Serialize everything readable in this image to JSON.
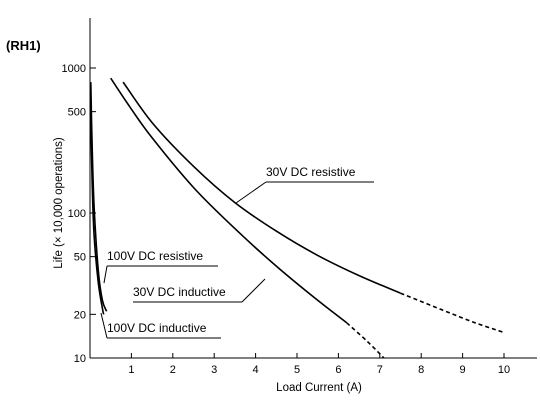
{
  "chart_data": {
    "type": "line",
    "title": "(RH1)",
    "xlabel": "Load Current (A)",
    "ylabel": "Life (× 10,000 operations)",
    "xlim": [
      0,
      10.8
    ],
    "ylim": [
      10,
      1000
    ],
    "y_scale": "log",
    "x_ticks": [
      1,
      2,
      3,
      4,
      5,
      6,
      7,
      8,
      9,
      10
    ],
    "y_ticks": [
      {
        "value": 10,
        "label": "10"
      },
      {
        "value": 20,
        "label": "20"
      },
      {
        "value": 50,
        "label": "50"
      },
      {
        "value": 100,
        "label": "100"
      },
      {
        "value": 500,
        "label": "500"
      },
      {
        "value": 1000,
        "label": "1000"
      }
    ],
    "grid": false,
    "series": [
      {
        "name": "30V DC resistive",
        "solid": [
          [
            0.8,
            800
          ],
          [
            1.5,
            420
          ],
          [
            2.5,
            210
          ],
          [
            3.5,
            118
          ],
          [
            4.5,
            75
          ],
          [
            5.5,
            51
          ],
          [
            6.5,
            37
          ],
          [
            7.5,
            28
          ]
        ],
        "dashed": [
          [
            7.5,
            28
          ],
          [
            8.5,
            21.5
          ],
          [
            9.3,
            17.5
          ],
          [
            10,
            15
          ]
        ]
      },
      {
        "name": "30V DC inductive",
        "solid": [
          [
            0.5,
            850
          ],
          [
            1,
            520
          ],
          [
            1.5,
            330
          ],
          [
            2.5,
            150
          ],
          [
            3.5,
            78
          ],
          [
            4.5,
            43
          ],
          [
            5.5,
            25
          ],
          [
            6.2,
            17.5
          ]
        ],
        "dashed": [
          [
            6.2,
            17.5
          ],
          [
            6.7,
            13
          ],
          [
            7.1,
            10
          ]
        ]
      },
      {
        "name": "100V DC resistive",
        "solid": [
          [
            0.02,
            800
          ],
          [
            0.05,
            300
          ],
          [
            0.1,
            110
          ],
          [
            0.2,
            40
          ],
          [
            0.3,
            25
          ],
          [
            0.4,
            21
          ]
        ],
        "dashed": []
      },
      {
        "name": "100V DC inductive",
        "solid": [
          [
            0.02,
            500
          ],
          [
            0.05,
            170
          ],
          [
            0.1,
            70
          ],
          [
            0.2,
            33
          ],
          [
            0.3,
            22
          ],
          [
            0.33,
            20
          ]
        ],
        "dashed": []
      }
    ],
    "annotations": [
      {
        "text": "30V DC resistive",
        "series": 0
      },
      {
        "text": "30V DC inductive",
        "series": 1
      },
      {
        "text": "100V DC resistive",
        "series": 2
      },
      {
        "text": "100V DC inductive",
        "series": 3
      }
    ]
  }
}
